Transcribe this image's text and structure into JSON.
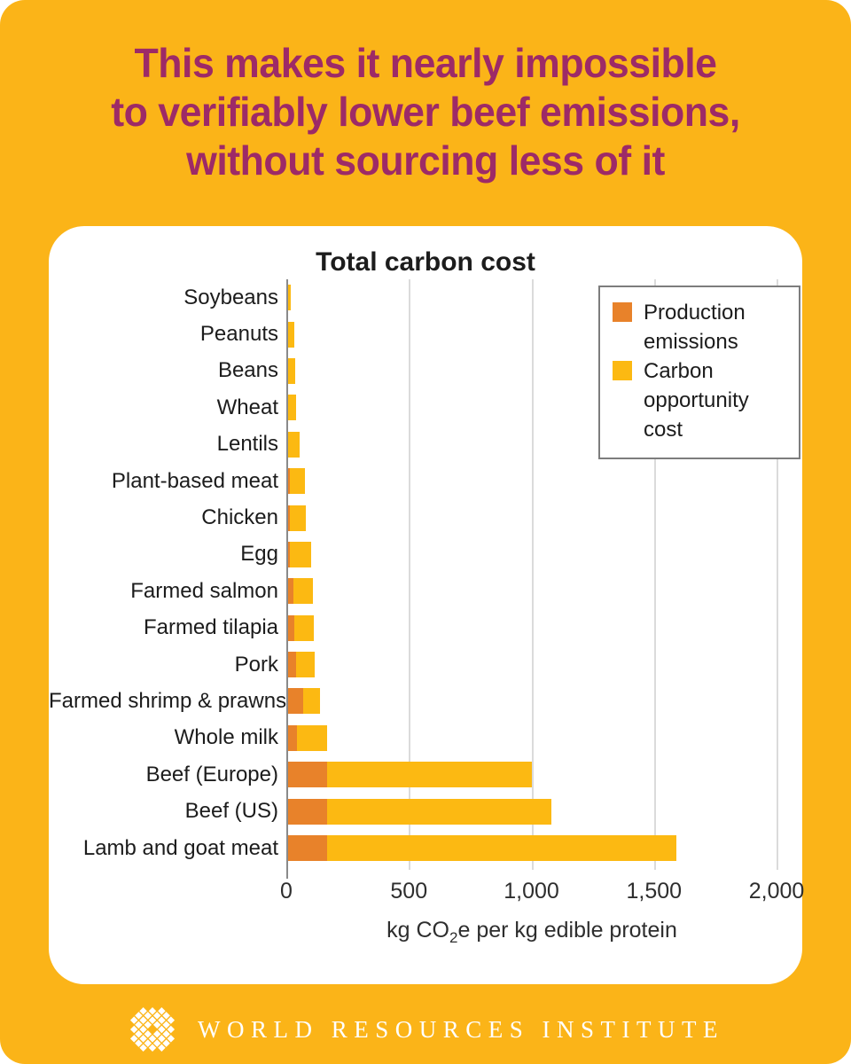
{
  "poster": {
    "title_lines": [
      "This makes it nearly impossible",
      "to verifiably lower beef emissions,",
      "without sourcing less of it"
    ]
  },
  "colors": {
    "background": "#FBB418",
    "headline": "#9D2A67",
    "production_orange": "#E8822A",
    "opportunity_yellow": "#FCB912",
    "gridline": "#DBDBDB",
    "axis": "#8A8A8A",
    "text_dark": "#1C1C1C",
    "legend_border": "#7D7D7D",
    "footer_text": "#FFFFFF"
  },
  "legend": {
    "items": [
      {
        "name": "production-emissions",
        "color": "#E8822A",
        "line1": "Production",
        "line2": "emissions"
      },
      {
        "name": "carbon-opportunity-cost",
        "color": "#FCB912",
        "line1": "Carbon",
        "line2": "opportunity cost"
      }
    ]
  },
  "axis": {
    "label_prefix": "kg CO",
    "label_sub": "2",
    "label_suffix": "e per kg edible protein"
  },
  "footer": {
    "org": "WORLD RESOURCES INSTITUTE"
  },
  "chart_data": {
    "type": "bar",
    "orientation": "horizontal",
    "stacked": true,
    "title": "Total carbon cost",
    "xlabel": "kg CO2e per kg edible protein",
    "xlim": [
      0,
      2000
    ],
    "xticks": [
      0,
      500,
      1000,
      1500,
      2000
    ],
    "xtick_labels": [
      "0",
      "500",
      "1,000",
      "1,500",
      "2,000"
    ],
    "grid": "vertical",
    "legend_position": "upper-right-inside",
    "categories": [
      "Soybeans",
      "Peanuts",
      "Beans",
      "Wheat",
      "Lentils",
      "Plant-based meat",
      "Chicken",
      "Egg",
      "Farmed salmon",
      "Farmed tilapia",
      "Pork",
      "Farmed shrimp & prawns",
      "Whole milk",
      "Beef (Europe)",
      "Beef (US)",
      "Lamb and goat meat"
    ],
    "series": [
      {
        "name": "Production emissions",
        "color": "#E8822A",
        "values": [
          3,
          4,
          6,
          5,
          5,
          13,
          14,
          16,
          30,
          33,
          41,
          68,
          45,
          167,
          165,
          165
        ]
      },
      {
        "name": "Carbon opportunity cost",
        "color": "#FCB912",
        "values": [
          16,
          29,
          29,
          36,
          48,
          62,
          66,
          85,
          80,
          78,
          74,
          68,
          120,
          836,
          917,
          1425
        ]
      }
    ],
    "totals": [
      19,
      33,
      35,
      41,
      53,
      75,
      80,
      101,
      110,
      111,
      115,
      136,
      165,
      1003,
      1082,
      1590
    ]
  }
}
